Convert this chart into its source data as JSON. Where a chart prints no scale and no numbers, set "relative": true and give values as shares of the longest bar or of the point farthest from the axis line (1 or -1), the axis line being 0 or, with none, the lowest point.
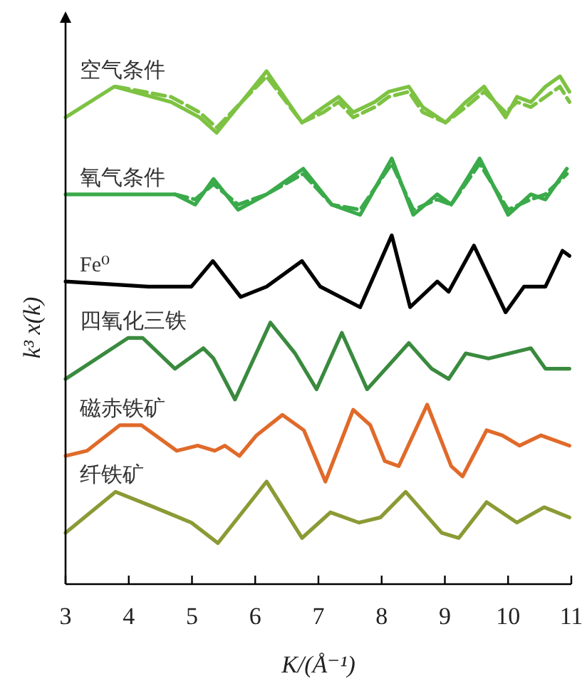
{
  "chart_data": {
    "type": "line",
    "relative": true,
    "xlabel": "K/(Å⁻¹)",
    "ylabel": "k³ x(k)",
    "xlim": [
      3,
      11
    ],
    "xticks": [
      3,
      4,
      5,
      6,
      7,
      8,
      9,
      10,
      11
    ],
    "series": [
      {
        "name": "空气条件",
        "color": "#7dc242",
        "line_style": "solid",
        "x": [
          3.0,
          3.77,
          4.67,
          5.12,
          5.39,
          6.18,
          6.74,
          7.08,
          7.32,
          7.55,
          7.89,
          8.11,
          8.43,
          8.65,
          9.01,
          9.33,
          9.62,
          9.96,
          10.14,
          10.36,
          10.59,
          10.82,
          10.97
        ],
        "values": [
          0.91,
          0.97,
          0.94,
          0.91,
          0.88,
          1.0,
          0.9,
          0.93,
          0.95,
          0.92,
          0.94,
          0.96,
          0.97,
          0.93,
          0.9,
          0.94,
          0.97,
          0.91,
          0.95,
          0.94,
          0.97,
          0.99,
          0.96
        ]
      },
      {
        "color": "#7dc242",
        "line_style": "dashed",
        "x": [
          3.8,
          4.67,
          5.12,
          5.39,
          6.18,
          6.74,
          7.08,
          7.32,
          7.55,
          7.89,
          8.11,
          8.43,
          8.65,
          9.01,
          9.33,
          9.62,
          9.96,
          10.14,
          10.36,
          10.59,
          10.82,
          10.97
        ],
        "values": [
          0.97,
          0.95,
          0.92,
          0.89,
          0.99,
          0.9,
          0.92,
          0.94,
          0.91,
          0.93,
          0.95,
          0.96,
          0.92,
          0.9,
          0.93,
          0.96,
          0.92,
          0.94,
          0.93,
          0.95,
          0.97,
          0.94
        ]
      },
      {
        "name": "氧气条件",
        "color": "#3aaa4a",
        "line_style": "solid",
        "x": [
          3.0,
          4.73,
          5.05,
          5.34,
          5.73,
          6.18,
          6.76,
          7.21,
          7.66,
          8.16,
          8.5,
          8.88,
          9.1,
          9.55,
          10.0,
          10.36,
          10.59,
          10.93
        ],
        "values": [
          0.76,
          0.76,
          0.74,
          0.79,
          0.73,
          0.76,
          0.81,
          0.74,
          0.72,
          0.83,
          0.72,
          0.76,
          0.74,
          0.83,
          0.72,
          0.76,
          0.75,
          0.81
        ]
      },
      {
        "color": "#3aaa4a",
        "line_style": "dashed",
        "x": [
          4.73,
          5.05,
          5.34,
          5.73,
          6.18,
          6.76,
          7.21,
          7.66,
          8.16,
          8.5,
          8.88,
          9.1,
          9.55,
          10.0,
          10.36,
          10.59,
          10.93
        ],
        "values": [
          0.76,
          0.75,
          0.78,
          0.74,
          0.76,
          0.8,
          0.74,
          0.73,
          0.82,
          0.73,
          0.75,
          0.74,
          0.82,
          0.73,
          0.75,
          0.76,
          0.8
        ]
      },
      {
        "name": "Fe⁰",
        "color": "#000000",
        "line_style": "solid",
        "x": [
          3.0,
          4.31,
          4.99,
          5.33,
          5.77,
          6.18,
          6.74,
          7.03,
          7.66,
          8.16,
          8.45,
          8.88,
          9.06,
          9.46,
          9.96,
          10.25,
          10.59,
          10.86,
          10.97
        ],
        "values": [
          0.59,
          0.58,
          0.58,
          0.63,
          0.56,
          0.58,
          0.63,
          0.58,
          0.54,
          0.68,
          0.54,
          0.59,
          0.57,
          0.66,
          0.53,
          0.58,
          0.58,
          0.65,
          0.64
        ]
      },
      {
        "name": "四氧化三铁",
        "color": "#3a8a3e",
        "line_style": "solid",
        "x": [
          3.0,
          3.99,
          4.22,
          4.73,
          5.18,
          5.34,
          5.68,
          6.24,
          6.63,
          6.97,
          7.37,
          7.77,
          8.43,
          8.79,
          9.06,
          9.33,
          9.69,
          10.36,
          10.59,
          10.97
        ],
        "values": [
          0.4,
          0.48,
          0.48,
          0.42,
          0.46,
          0.44,
          0.36,
          0.51,
          0.45,
          0.38,
          0.49,
          0.38,
          0.47,
          0.42,
          0.4,
          0.45,
          0.44,
          0.46,
          0.42,
          0.42
        ]
      },
      {
        "name": "磁赤铁矿",
        "color": "#e06a2a",
        "line_style": "solid",
        "x": [
          3.0,
          3.34,
          3.86,
          4.2,
          4.76,
          5.09,
          5.36,
          5.52,
          5.75,
          6.02,
          6.43,
          6.77,
          7.11,
          7.55,
          7.82,
          8.05,
          8.27,
          8.72,
          9.1,
          9.28,
          9.66,
          9.91,
          10.18,
          10.52,
          10.97
        ],
        "values": [
          0.25,
          0.26,
          0.31,
          0.31,
          0.26,
          0.27,
          0.26,
          0.27,
          0.25,
          0.29,
          0.33,
          0.3,
          0.2,
          0.34,
          0.31,
          0.24,
          0.23,
          0.35,
          0.23,
          0.21,
          0.3,
          0.29,
          0.27,
          0.29,
          0.27
        ]
      },
      {
        "name": "纤铁矿",
        "color": "#8c9a35",
        "line_style": "solid",
        "x": [
          3.0,
          3.79,
          4.4,
          4.99,
          5.41,
          6.18,
          6.74,
          7.19,
          7.64,
          7.98,
          8.38,
          8.95,
          9.22,
          9.66,
          10.14,
          10.57,
          10.97
        ],
        "values": [
          0.1,
          0.18,
          0.15,
          0.12,
          0.08,
          0.2,
          0.09,
          0.14,
          0.12,
          0.13,
          0.18,
          0.1,
          0.09,
          0.16,
          0.12,
          0.15,
          0.13
        ]
      }
    ]
  }
}
